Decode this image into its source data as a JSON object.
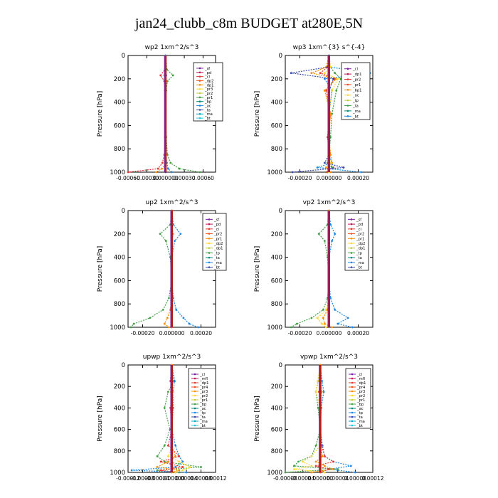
{
  "page": {
    "title": "jan24_clubb_c8m  BUDGET at280E,5N"
  },
  "chart_data": [
    {
      "type": "line",
      "title": "wp2  1xm^2/s^3",
      "ylabel": "Pressure [hPa]",
      "ylim": [
        1000,
        0
      ],
      "xlim": [
        -0.0006,
        0.0008
      ],
      "xticks": [
        -0.0006,
        -0.0003,
        0.0,
        0.0003,
        0.0006
      ],
      "xtick_labels": [
        "-0.00060",
        "-0.00030",
        "0.000000",
        "0.00030",
        "0.00060"
      ],
      "yticks": [
        0,
        200,
        400,
        600,
        800,
        1000
      ],
      "legend": "right",
      "legend_entries": [
        "_sf",
        "_pd",
        "_cl",
        "_dp2",
        "_dp1",
        "_pr3",
        "_pr2",
        "_pr1",
        "_bp",
        "_ac",
        "_ta",
        "_ma",
        "_bt"
      ],
      "series": [
        {
          "name": "_pd",
          "color": "#7b1fa2",
          "x": [
            0,
            0,
            0,
            0,
            0,
            0,
            0,
            0,
            0,
            0,
            0
          ],
          "y": [
            0,
            100,
            200,
            300,
            400,
            500,
            600,
            700,
            800,
            900,
            1000
          ]
        },
        {
          "name": "_cl",
          "color": "#e53935",
          "x": [
            0,
            -1e-05,
            -8e-05,
            -2e-05,
            -1e-05,
            0,
            -1e-05,
            -2e-05,
            -5e-05,
            -0.00012,
            -0.0006
          ],
          "y": [
            0,
            120,
            170,
            220,
            300,
            500,
            700,
            850,
            920,
            970,
            1000
          ]
        },
        {
          "name": "_bp",
          "color": "#43a047",
          "x": [
            0,
            2e-05,
            0.00012,
            3e-05,
            1e-05,
            0,
            1e-05,
            3e-05,
            8e-05,
            0.00022,
            0.00055
          ],
          "y": [
            0,
            120,
            170,
            220,
            300,
            500,
            700,
            850,
            920,
            970,
            1000
          ]
        },
        {
          "name": "_ac",
          "color": "#fb8c00",
          "x": [
            0,
            -1e-05,
            -2e-05,
            1e-05,
            0,
            0,
            0,
            1e-05,
            2e-05,
            -6e-05,
            -0.00015
          ],
          "y": [
            0,
            120,
            170,
            220,
            300,
            500,
            700,
            850,
            920,
            970,
            1000
          ]
        },
        {
          "name": "_ta",
          "color": "#1e88e5",
          "x": [
            0,
            0,
            1e-05,
            0,
            0,
            0,
            0,
            0,
            2e-05,
            4e-05,
            0.0001
          ],
          "y": [
            0,
            120,
            170,
            220,
            300,
            500,
            700,
            850,
            920,
            970,
            1000
          ]
        }
      ]
    },
    {
      "type": "line",
      "title": "wp3  1xm^{3} s^{-4}",
      "ylabel": "Pressure [hPa]",
      "ylim": [
        1000,
        0
      ],
      "xlim": [
        -0.0003,
        0.0003
      ],
      "xticks": [
        -0.0002,
        0.0,
        0.0002
      ],
      "xtick_labels": [
        "-0.00020",
        "0.000000",
        "0.00020"
      ],
      "yticks": [
        0,
        200,
        400,
        600,
        800,
        1000
      ],
      "legend": "top-right",
      "legend_entries": [
        "_cl",
        "_dp1",
        "_pr2",
        "_pr1",
        "_bp1",
        "_ac",
        "_tp",
        "_ta",
        "_ma",
        "_bt"
      ],
      "series": [
        {
          "name": "_dp1",
          "color": "#1e88e5",
          "x": [
            0,
            1e-05,
            0.00028,
            -3e-05,
            2e-05,
            0,
            -1e-05,
            0,
            2e-05,
            -8e-05,
            0.00022
          ],
          "y": [
            0,
            100,
            150,
            200,
            300,
            500,
            700,
            850,
            920,
            960,
            1000
          ]
        },
        {
          "name": "_cl",
          "color": "#e53935",
          "x": [
            0,
            -1e-05,
            -6e-05,
            4e-05,
            -2e-05,
            1e-05,
            -1e-05,
            1e-05,
            -1e-05,
            3e-05,
            -2e-05
          ],
          "y": [
            0,
            100,
            150,
            200,
            300,
            500,
            700,
            850,
            920,
            960,
            1000
          ]
        },
        {
          "name": "_pr1",
          "color": "#fb8c00",
          "x": [
            0,
            -2e-05,
            -0.00012,
            5e-05,
            -3e-05,
            1e-05,
            0,
            1e-05,
            2e-05,
            -2e-05,
            1e-05
          ],
          "y": [
            0,
            100,
            150,
            200,
            300,
            500,
            700,
            850,
            920,
            960,
            1000
          ]
        },
        {
          "name": "_ac",
          "color": "#43a047",
          "x": [
            0,
            1e-05,
            4e-05,
            8e-05,
            5e-05,
            2e-05,
            1e-05,
            0,
            -1e-05,
            2e-05,
            -1e-05
          ],
          "y": [
            0,
            100,
            150,
            200,
            300,
            500,
            700,
            850,
            920,
            960,
            1000
          ]
        },
        {
          "name": "_pr2",
          "color": "#fdd835",
          "x": [
            0,
            1e-05,
            -3e-05,
            6e-05,
            2e-05,
            0,
            0,
            0,
            1e-05,
            0,
            0
          ],
          "y": [
            0,
            100,
            150,
            200,
            300,
            500,
            700,
            850,
            920,
            960,
            1000
          ]
        },
        {
          "name": "_ta",
          "color": "#3949ab",
          "x": [
            0,
            -1e-05,
            -0.00026,
            3e-05,
            0,
            0,
            0,
            0,
            -3e-05,
            0.0001,
            -0.00025
          ],
          "y": [
            0,
            100,
            150,
            200,
            300,
            500,
            700,
            850,
            920,
            960,
            1000
          ]
        }
      ]
    },
    {
      "type": "line",
      "title": "up2  1xm^2/s^3",
      "ylabel": "Pressure [hPa]",
      "ylim": [
        1000,
        0
      ],
      "xlim": [
        -0.0003,
        0.0003
      ],
      "xticks": [
        -0.0002,
        0.0,
        0.0002
      ],
      "xtick_labels": [
        "-0.00020",
        "0.000000",
        "0.00020"
      ],
      "yticks": [
        0,
        200,
        400,
        600,
        800,
        1000
      ],
      "legend": "top-right",
      "legend_entries": [
        "_sf",
        "_pd",
        "_cl",
        "_pr2",
        "_pr1",
        "_dp2",
        "_dp1",
        "_tp",
        "_ta",
        "_ma",
        "_bt"
      ],
      "series": [
        {
          "name": "_dp2",
          "color": "#43a047",
          "x": [
            0,
            -1e-05,
            -8e-05,
            -4e-05,
            -1e-05,
            0,
            -2e-05,
            -6e-05,
            -0.00015,
            -0.00026,
            -0.00028
          ],
          "y": [
            0,
            120,
            200,
            260,
            400,
            600,
            750,
            850,
            920,
            970,
            1000
          ]
        },
        {
          "name": "_tp",
          "color": "#1e88e5",
          "x": [
            0,
            1e-05,
            6e-05,
            2e-05,
            0,
            0,
            1e-05,
            3e-05,
            8e-05,
            0.00012,
            0.00018
          ],
          "y": [
            0,
            120,
            200,
            260,
            400,
            600,
            750,
            850,
            920,
            970,
            1000
          ]
        },
        {
          "name": "_pr2",
          "color": "#fb8c00",
          "x": [
            0,
            0,
            1e-05,
            0,
            0,
            0,
            0,
            -1e-05,
            -3e-05,
            -5e-05,
            -2e-05
          ],
          "y": [
            0,
            120,
            200,
            260,
            400,
            600,
            750,
            850,
            920,
            970,
            1000
          ]
        },
        {
          "name": "_cl",
          "color": "#e53935",
          "x": [
            0,
            0,
            0,
            0,
            0,
            0,
            0,
            0,
            0,
            0,
            0
          ],
          "y": [
            0,
            120,
            200,
            260,
            400,
            600,
            750,
            850,
            920,
            970,
            1000
          ]
        }
      ]
    },
    {
      "type": "line",
      "title": "vp2  1xm^2/s^3",
      "ylabel": "Pressure [hPa]",
      "ylim": [
        1000,
        0
      ],
      "xlim": [
        -0.0003,
        0.0003
      ],
      "xticks": [
        -0.0002,
        0.0,
        0.0002
      ],
      "xtick_labels": [
        "-0.00020",
        "0.000000",
        "0.00020"
      ],
      "yticks": [
        0,
        200,
        400,
        600,
        800,
        1000
      ],
      "legend": "top-right",
      "legend_entries": [
        "_sf",
        "_pd",
        "_cl",
        "_pr2",
        "_pr1",
        "_dp2",
        "_dp1",
        "_tp",
        "_ta",
        "_ma",
        "_bt"
      ],
      "series": [
        {
          "name": "_dp2",
          "color": "#43a047",
          "x": [
            0,
            -1e-05,
            -7e-05,
            -3e-05,
            -1e-05,
            0,
            -1e-05,
            -4e-05,
            -0.00012,
            -0.00022,
            -0.00026
          ],
          "y": [
            0,
            120,
            200,
            260,
            400,
            600,
            750,
            850,
            920,
            970,
            1000
          ]
        },
        {
          "name": "_tp",
          "color": "#1e88e5",
          "x": [
            0,
            1e-05,
            4e-05,
            2e-05,
            0,
            0,
            1e-05,
            4e-05,
            0.00013,
            6e-05,
            0.00016
          ],
          "y": [
            0,
            120,
            200,
            260,
            400,
            600,
            750,
            850,
            920,
            970,
            1000
          ]
        },
        {
          "name": "_pr2",
          "color": "#fdd835",
          "x": [
            0,
            0,
            0,
            0,
            0,
            0,
            0,
            -2e-05,
            -8e-05,
            -5e-05,
            -2e-05
          ],
          "y": [
            0,
            120,
            200,
            260,
            400,
            600,
            750,
            850,
            920,
            970,
            1000
          ]
        },
        {
          "name": "_pr1",
          "color": "#fb8c00",
          "x": [
            0,
            0,
            0,
            0,
            0,
            0,
            0,
            -1e-05,
            -4e-05,
            -3e-05,
            2e-05
          ],
          "y": [
            0,
            120,
            200,
            260,
            400,
            600,
            750,
            850,
            920,
            970,
            1000
          ]
        }
      ]
    },
    {
      "type": "line",
      "title": "upwp  1xm^2/s^3",
      "ylabel": "Pressure [hPa]",
      "ylim": [
        1000,
        0
      ],
      "xlim": [
        -0.00012,
        0.00012
      ],
      "xticks": [
        -0.00012,
        -8e-05,
        -4e-05,
        0.0,
        4e-05,
        8e-05,
        0.00012
      ],
      "xtick_labels": [
        "-0.00012",
        "-0.00008",
        "-0.00004",
        "0.000000",
        "0.00004",
        "0.00008",
        "0.00012"
      ],
      "yticks": [
        0,
        200,
        400,
        600,
        800,
        1000
      ],
      "legend": "top-right",
      "legend_entries": [
        "_cl",
        "_mfl",
        "_dp1",
        "_pr4",
        "_pr3",
        "_pr2",
        "_pr1",
        "_bp",
        "_ac",
        "_tp",
        "_ta",
        "_ma",
        "_bt"
      ],
      "series": [
        {
          "name": "_bp",
          "color": "#43a047",
          "x": [
            0,
            5e-06,
            -1e-05,
            -2e-05,
            -5e-06,
            -2e-05,
            -4e-05,
            -2e-05,
            8e-05,
            -4e-05,
            2e-05
          ],
          "y": [
            0,
            150,
            250,
            400,
            600,
            750,
            850,
            900,
            950,
            980,
            1000
          ]
        },
        {
          "name": "_tp",
          "color": "#1e88e5",
          "x": [
            0,
            8e-06,
            3e-06,
            4e-06,
            0,
            1e-05,
            2e-05,
            3e-05,
            1e-05,
            -0.00011,
            4e-05
          ],
          "y": [
            0,
            150,
            250,
            400,
            600,
            750,
            850,
            900,
            950,
            980,
            1000
          ]
        },
        {
          "name": "_cl",
          "color": "#e53935",
          "x": [
            0,
            -4e-06,
            3e-06,
            -4e-06,
            0,
            -1e-05,
            2e-05,
            -3e-05,
            3e-05,
            -3e-05,
            1e-05
          ],
          "y": [
            0,
            150,
            250,
            400,
            600,
            750,
            850,
            900,
            950,
            980,
            1000
          ]
        },
        {
          "name": "_pr2",
          "color": "#fdd835",
          "x": [
            0,
            0,
            2e-06,
            0,
            0,
            0,
            -1e-05,
            2e-05,
            5e-05,
            3e-05,
            1e-05
          ],
          "y": [
            0,
            150,
            250,
            400,
            600,
            750,
            850,
            900,
            950,
            980,
            1000
          ]
        },
        {
          "name": "_pr1",
          "color": "#fb8c00",
          "x": [
            0,
            0,
            -2e-06,
            0,
            0,
            0,
            1e-05,
            -1e-05,
            -4e-05,
            2e-05,
            0
          ],
          "y": [
            0,
            150,
            250,
            400,
            600,
            750,
            850,
            900,
            950,
            980,
            1000
          ]
        }
      ]
    },
    {
      "type": "line",
      "title": "vpwp  1xm^2/s^3",
      "ylabel": "Pressure [hPa]",
      "ylim": [
        1000,
        0
      ],
      "xlim": [
        -8e-05,
        0.00012
      ],
      "xticks": [
        -8e-05,
        -4e-05,
        0.0,
        4e-05,
        8e-05,
        0.00012
      ],
      "xtick_labels": [
        "-0.00008",
        "-0.00004",
        "0.000000",
        "0.00004",
        "0.00008",
        "0.00012"
      ],
      "yticks": [
        0,
        200,
        400,
        600,
        800,
        1000
      ],
      "legend": "top-right",
      "legend_entries": [
        "_cl",
        "_mfl",
        "_dp1",
        "_pr4",
        "_pr3",
        "_pr2",
        "_pr1",
        "_bp",
        "_ac",
        "_tp",
        "_ta",
        "_ma",
        "_bt"
      ],
      "series": [
        {
          "name": "_bp",
          "color": "#43a047",
          "x": [
            0,
            -5e-06,
            -1e-05,
            -5e-06,
            0,
            -1e-05,
            -2e-05,
            -5e-05,
            -6e-05,
            4e-05,
            -8e-05
          ],
          "y": [
            0,
            150,
            250,
            400,
            600,
            750,
            850,
            900,
            940,
            970,
            1000
          ]
        },
        {
          "name": "_tp",
          "color": "#1e88e5",
          "x": [
            0,
            4e-06,
            8e-06,
            2e-06,
            0,
            5e-06,
            1e-05,
            3e-05,
            7e-05,
            2e-05,
            8e-05
          ],
          "y": [
            0,
            150,
            250,
            400,
            600,
            750,
            850,
            900,
            940,
            970,
            1000
          ]
        },
        {
          "name": "_pr2",
          "color": "#fdd835",
          "x": [
            0,
            -6e-06,
            -1e-05,
            0,
            0,
            0,
            -2e-05,
            -4e-05,
            -2e-05,
            -6e-05,
            1e-05
          ],
          "y": [
            0,
            150,
            250,
            400,
            600,
            750,
            850,
            900,
            940,
            970,
            1000
          ]
        },
        {
          "name": "_cl",
          "color": "#e53935",
          "x": [
            0,
            2e-06,
            -3e-06,
            2e-06,
            0,
            3e-06,
            1e-05,
            3e-05,
            -1e-05,
            2e-05,
            0
          ],
          "y": [
            0,
            150,
            250,
            400,
            600,
            750,
            850,
            900,
            940,
            970,
            1000
          ]
        },
        {
          "name": "_pr1",
          "color": "#fb8c00",
          "x": [
            0,
            2e-06,
            3e-06,
            0,
            0,
            0,
            5e-06,
            -1e-05,
            1e-05,
            3e-05,
            -2e-05
          ],
          "y": [
            0,
            150,
            250,
            400,
            600,
            750,
            850,
            900,
            940,
            970,
            1000
          ]
        }
      ]
    }
  ]
}
